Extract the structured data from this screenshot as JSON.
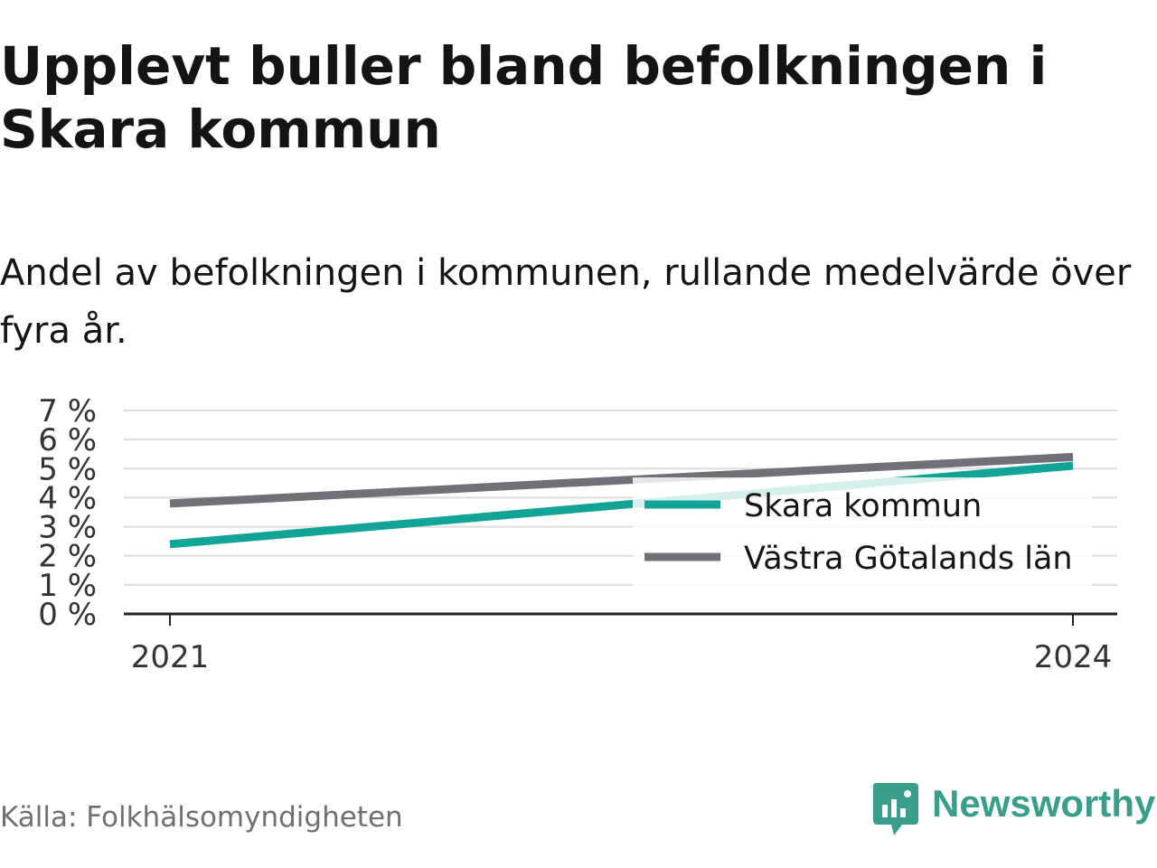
{
  "title": "Upplevt buller bland befolkningen i Skara kommun",
  "subtitle": "Andel av befolkningen i kommunen, rullande medelvärde över fyra år.",
  "source": "Källa: Folkhälsomyndigheten",
  "brand": {
    "name": "Newsworthy",
    "icon": "newsworthy-logo-icon",
    "color": "#3a9e8d"
  },
  "chart_data": {
    "type": "line",
    "x": [
      "2021",
      "2024"
    ],
    "ylim": [
      0,
      7
    ],
    "y_ticks": [
      "0 %",
      "1 %",
      "2 %",
      "3 %",
      "4 %",
      "5 %",
      "6 %",
      "7 %"
    ],
    "x_ticks": [
      "2021",
      "2024"
    ],
    "grid": true,
    "legend_position": "right",
    "series": [
      {
        "name": "Skara kommun",
        "values": [
          2.4,
          5.1
        ],
        "color": "#12a597"
      },
      {
        "name": "Västra Götalands län",
        "values": [
          3.8,
          5.4
        ],
        "color": "#717078"
      }
    ]
  }
}
